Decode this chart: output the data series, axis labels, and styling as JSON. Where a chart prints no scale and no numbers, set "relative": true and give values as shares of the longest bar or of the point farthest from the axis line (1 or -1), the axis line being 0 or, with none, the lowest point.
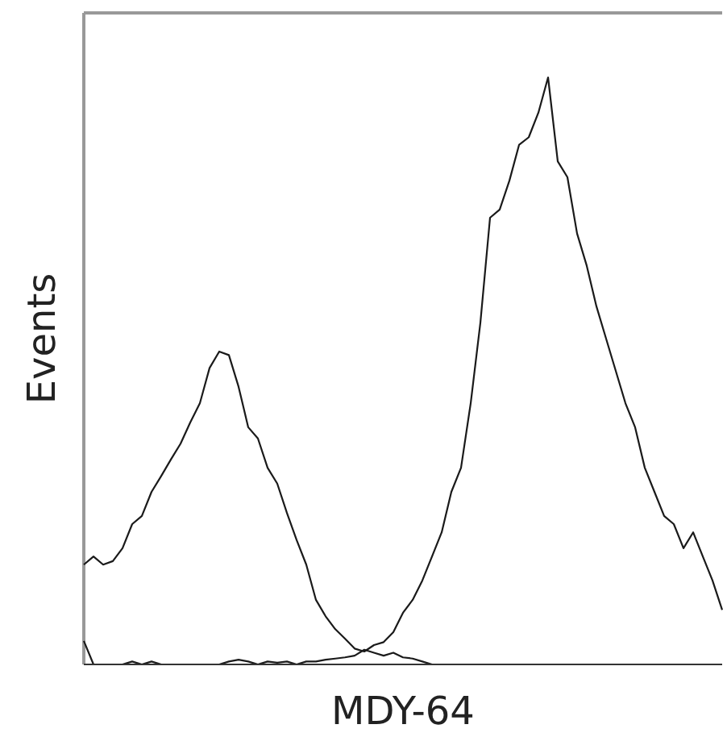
{
  "chart_data": {
    "type": "line",
    "relative": true,
    "xlabel": "MDY-64",
    "ylabel": "Events",
    "categories": [
      null,
      null,
      null,
      null,
      null,
      null,
      null,
      null,
      null,
      null,
      null,
      null,
      null,
      null,
      null,
      null,
      null,
      null,
      null,
      null,
      null,
      null,
      null,
      null,
      null,
      null,
      null,
      null,
      null,
      null,
      null,
      null,
      null,
      null,
      null,
      null,
      null,
      null,
      null,
      null,
      null,
      null,
      null,
      null,
      null,
      null,
      null,
      null,
      null,
      null,
      null,
      null,
      null,
      null,
      null,
      null,
      null,
      null,
      null,
      null,
      null,
      null,
      null,
      null,
      null,
      null,
      null
    ],
    "series": [
      {
        "color": "#1a1a1a",
        "values": [
          0.17,
          0.184,
          0.17,
          0.176,
          0.198,
          0.239,
          0.253,
          0.294,
          0.321,
          0.349,
          0.376,
          0.412,
          0.445,
          0.505,
          0.533,
          0.527,
          0.473,
          0.404,
          0.385,
          0.335,
          0.308,
          0.258,
          0.212,
          0.17,
          0.11,
          0.082,
          0.06,
          0.044,
          0.027,
          0.022,
          0.033,
          0.038,
          0.055,
          0.088,
          0.11,
          0.143,
          0.184,
          0.225,
          0.294,
          0.335,
          0.445,
          0.582,
          0.761,
          0.775,
          0.824,
          0.885,
          0.898,
          0.94,
          1.0,
          0.857,
          0.83,
          0.734,
          0.679,
          0.61,
          0.555,
          0.5,
          0.445,
          0.404,
          0.335,
          0.294,
          0.253,
          0.239,
          0.198,
          0.225,
          0.184,
          0.143,
          0.093
        ]
      },
      {
        "color": "#1a1a1a",
        "values": [
          0.04,
          0.0,
          0.0,
          0.0,
          0.0,
          0.005,
          0.0,
          0.005,
          0.0,
          0.0,
          0.0,
          0.0,
          0.0,
          0.0,
          0.0,
          0.005,
          0.008,
          0.005,
          0.0,
          0.005,
          0.003,
          0.005,
          0.0,
          0.005,
          0.005,
          0.008,
          0.01,
          0.012,
          0.015,
          0.025,
          0.02,
          0.015,
          0.02,
          0.012,
          0.01,
          0.005,
          0.0,
          null,
          null,
          null,
          null,
          null,
          null,
          null,
          null,
          null,
          null,
          null,
          null,
          null,
          null,
          null,
          null,
          null,
          null,
          null,
          null,
          null,
          null,
          null,
          null,
          null,
          null,
          null,
          null,
          null,
          null
        ]
      }
    ]
  }
}
